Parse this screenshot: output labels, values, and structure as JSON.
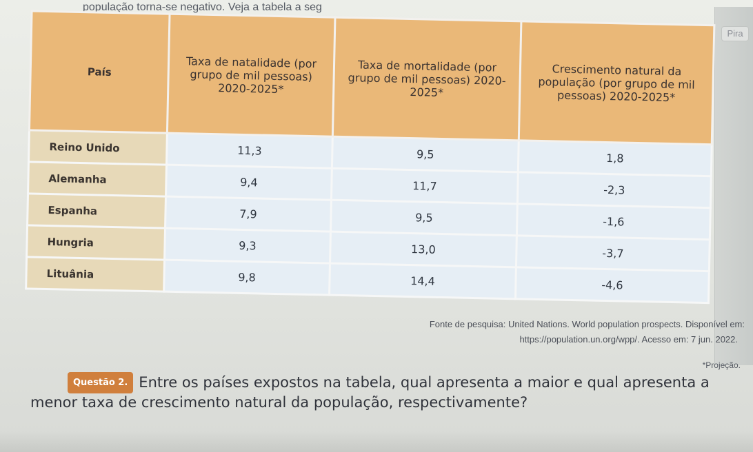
{
  "top_text": "população torna-se negativo. Veja a tabela a seg",
  "right_tab_label": "Pira",
  "table": {
    "headers": [
      "País",
      "Taxa de natalidade (por grupo de mil pessoas) 2020-2025*",
      "Taxa de mortalidade (por grupo de mil pessoas) 2020-2025*",
      "Crescimento natural da população (por grupo de mil pessoas) 2020-2025*"
    ],
    "rows": [
      {
        "country": "Reino Unido",
        "birth": "11,3",
        "death": "9,5",
        "growth": "1,8"
      },
      {
        "country": "Alemanha",
        "birth": "9,4",
        "death": "11,7",
        "growth": "-2,3"
      },
      {
        "country": "Espanha",
        "birth": "7,9",
        "death": "9,5",
        "growth": "-1,6"
      },
      {
        "country": "Hungria",
        "birth": "9,3",
        "death": "13,0",
        "growth": "-3,7"
      },
      {
        "country": "Lituânia",
        "birth": "9,8",
        "death": "14,4",
        "growth": "-4,6"
      }
    ]
  },
  "source": {
    "line1": "Fonte de pesquisa: United Nations. World population prospects. Disponível em:",
    "line2": "https://population.un.org/wpp/. Acesso em: 7 jun. 2022."
  },
  "projection_note": "*Projeção.",
  "question": {
    "badge": "Questão 2.",
    "text": "Entre os países expostos na tabela, qual apresenta a maior e qual apresenta a menor taxa de crescimento natural da população, respectivamente?"
  }
}
